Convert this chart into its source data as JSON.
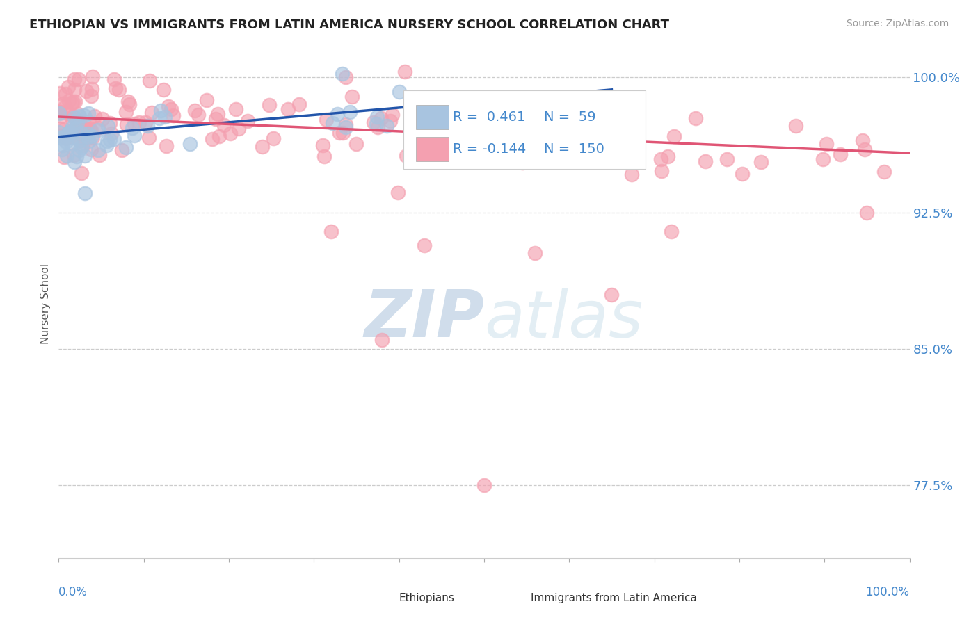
{
  "title": "ETHIOPIAN VS IMMIGRANTS FROM LATIN AMERICA NURSERY SCHOOL CORRELATION CHART",
  "source": "Source: ZipAtlas.com",
  "ylabel": "Nursery School",
  "xlim": [
    0.0,
    1.0
  ],
  "ylim": [
    0.735,
    1.015
  ],
  "yticks": [
    0.775,
    0.85,
    0.925,
    1.0
  ],
  "ytick_labels": [
    "77.5%",
    "85.0%",
    "92.5%",
    "100.0%"
  ],
  "bg_color": "#ffffff",
  "r_ethiopian": 0.461,
  "n_ethiopian": 59,
  "r_latin": -0.144,
  "n_latin": 150,
  "ethiopian_color": "#a8c4e0",
  "latin_color": "#f4a0b0",
  "trendline_ethiopian_color": "#2255aa",
  "trendline_latin_color": "#e05575",
  "legend_label_ethiopian": "Ethiopians",
  "legend_label_latin": "Immigrants from Latin America",
  "eth_trend_x": [
    0.0,
    0.65
  ],
  "eth_trend_y": [
    0.967,
    0.993
  ],
  "lat_trend_x": [
    0.0,
    1.0
  ],
  "lat_trend_y": [
    0.978,
    0.958
  ]
}
